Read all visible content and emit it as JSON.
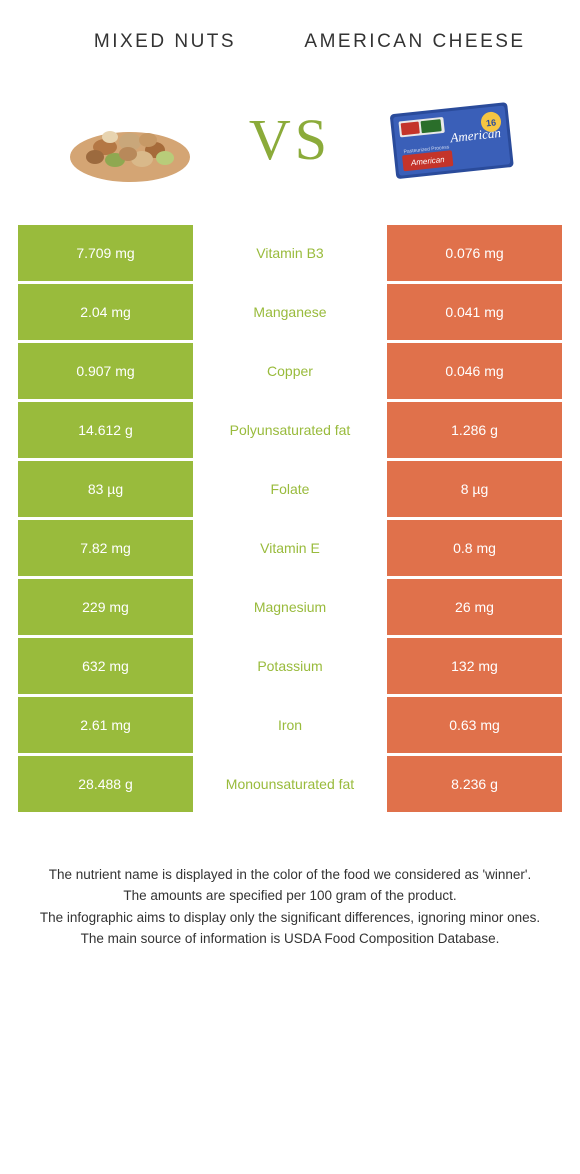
{
  "header": {
    "left_title": "Mixed nuts",
    "right_title": "American cheese",
    "vs_label": "VS"
  },
  "colors": {
    "left_bg": "#99bb3c",
    "right_bg": "#e0714b",
    "mid_text": "#99bb3c",
    "vs_color": "#8bab3a",
    "page_bg": "#ffffff",
    "text": "#333333"
  },
  "table": {
    "rows": [
      {
        "left": "7.709 mg",
        "mid": "Vitamin B3",
        "right": "0.076 mg"
      },
      {
        "left": "2.04 mg",
        "mid": "Manganese",
        "right": "0.041 mg"
      },
      {
        "left": "0.907 mg",
        "mid": "Copper",
        "right": "0.046 mg"
      },
      {
        "left": "14.612 g",
        "mid": "Polyunsaturated fat",
        "right": "1.286 g"
      },
      {
        "left": "83 µg",
        "mid": "Folate",
        "right": "8 µg"
      },
      {
        "left": "7.82 mg",
        "mid": "Vitamin E",
        "right": "0.8 mg"
      },
      {
        "left": "229 mg",
        "mid": "Magnesium",
        "right": "26 mg"
      },
      {
        "left": "632 mg",
        "mid": "Potassium",
        "right": "132 mg"
      },
      {
        "left": "2.61 mg",
        "mid": "Iron",
        "right": "0.63 mg"
      },
      {
        "left": "28.488 g",
        "mid": "Monounsaturated fat",
        "right": "8.236 g"
      }
    ]
  },
  "footer": {
    "line1": "The nutrient name is displayed in the color of the food we considered as 'winner'.",
    "line2": "The amounts are specified per 100 gram of the product.",
    "line3": "The infographic aims to display only the significant differences, ignoring minor ones.",
    "line4": "The main source of information is USDA Food Composition Database."
  }
}
